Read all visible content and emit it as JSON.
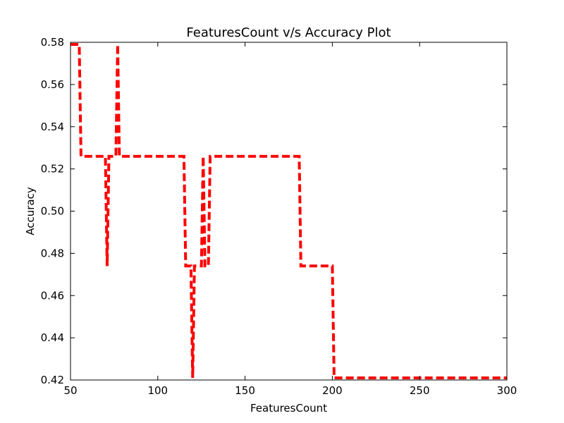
{
  "chart_data": {
    "type": "line",
    "title": "FeaturesCount v/s Accuracy Plot",
    "xlabel": "FeaturesCount",
    "ylabel": "Accuracy",
    "xlim": [
      50,
      300
    ],
    "ylim": [
      0.42,
      0.58
    ],
    "xticks": [
      50,
      100,
      150,
      200,
      250,
      300
    ],
    "xtick_labels": [
      "50",
      "100",
      "150",
      "200",
      "250",
      "300"
    ],
    "yticks": [
      0.42,
      0.44,
      0.46,
      0.48,
      0.5,
      0.52,
      0.54,
      0.56,
      0.58
    ],
    "ytick_labels": [
      "0.42",
      "0.44",
      "0.46",
      "0.48",
      "0.50",
      "0.52",
      "0.54",
      "0.56",
      "0.58"
    ],
    "grid": false,
    "series": [
      {
        "color": "#ff0000",
        "line_style": "dashed",
        "x": [
          50,
          55,
          56,
          70,
          71,
          72,
          73,
          76,
          77,
          78,
          115,
          116,
          119,
          120,
          121,
          125,
          126,
          127,
          129,
          130,
          131,
          181,
          182,
          200,
          201,
          202,
          300
        ],
        "y": [
          0.579,
          0.579,
          0.526,
          0.526,
          0.474,
          0.526,
          0.526,
          0.526,
          0.579,
          0.526,
          0.526,
          0.474,
          0.474,
          0.421,
          0.474,
          0.474,
          0.526,
          0.474,
          0.474,
          0.526,
          0.526,
          0.526,
          0.474,
          0.474,
          0.421,
          0.421,
          0.421
        ]
      }
    ]
  }
}
